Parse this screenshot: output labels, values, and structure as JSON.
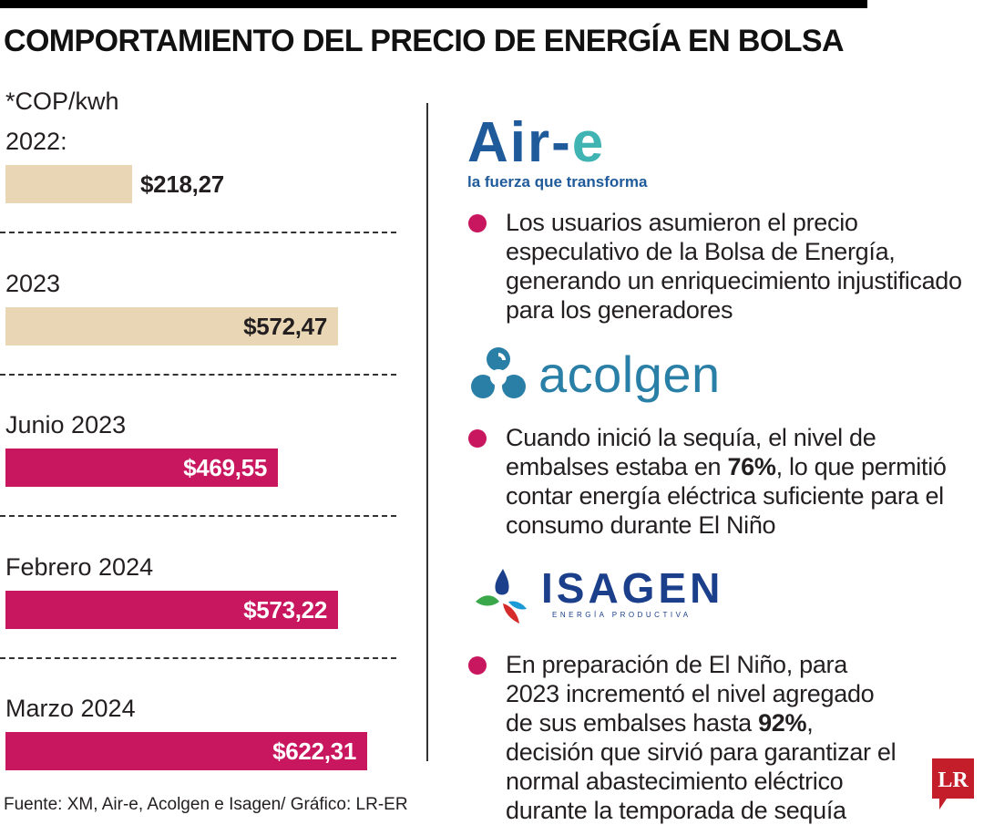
{
  "title": "COMPORTAMIENTO DEL PRECIO DE ENERGÍA EN BOLSA",
  "unit": "*COP/kwh",
  "colors": {
    "beige": "#e8d6b4",
    "magenta": "#c8175e",
    "dark": "#231f20"
  },
  "chart_data": {
    "type": "bar",
    "orientation": "horizontal",
    "categories": [
      "2022:",
      "2023",
      "Junio 2023",
      "Febrero 2024",
      "Marzo 2024"
    ],
    "values": [
      218.27,
      572.47,
      469.55,
      573.22,
      622.31
    ],
    "value_labels": [
      "$218,27",
      "$572,47",
      "$469,55",
      "$573,22",
      "$622,31"
    ],
    "bar_colors": [
      "#e8d6b4",
      "#e8d6b4",
      "#c8175e",
      "#c8175e",
      "#c8175e"
    ],
    "title": "COMPORTAMIENTO DEL PRECIO DE ENERGÍA EN BOLSA",
    "unit": "*COP/kwh",
    "xlim": [
      0,
      660
    ]
  },
  "logos": {
    "aire_part1": "Air-",
    "aire_part2": "e",
    "aire_tagline": "la fuerza que transforma",
    "acolgen": "acolgen",
    "isagen": "ISAGEN",
    "isagen_tagline": "ENERGÍA PRODUCTIVA",
    "lr": "LR"
  },
  "notes": [
    {
      "text": "Los usuarios asumieron el precio especulativo de la Bolsa de Energía, generando un enriquecimiento injustificado para los generadores"
    },
    {
      "before": "Cuando inició la sequía, el nivel de embalses estaba en ",
      "bold": "76%",
      "after": ", lo que permitió contar energía eléctrica suficiente para el consumo durante El Niño"
    },
    {
      "before": "En preparación de El Niño, para 2023 incrementó el nivel agregado de sus embalses hasta ",
      "bold": "92%",
      "after": ", decisión que sirvió para garantizar el normal abastecimiento eléctrico durante la temporada de sequía"
    }
  ],
  "source": "Fuente:  XM, Air-e, Acolgen e Isagen/ Gráfico: LR-ER"
}
